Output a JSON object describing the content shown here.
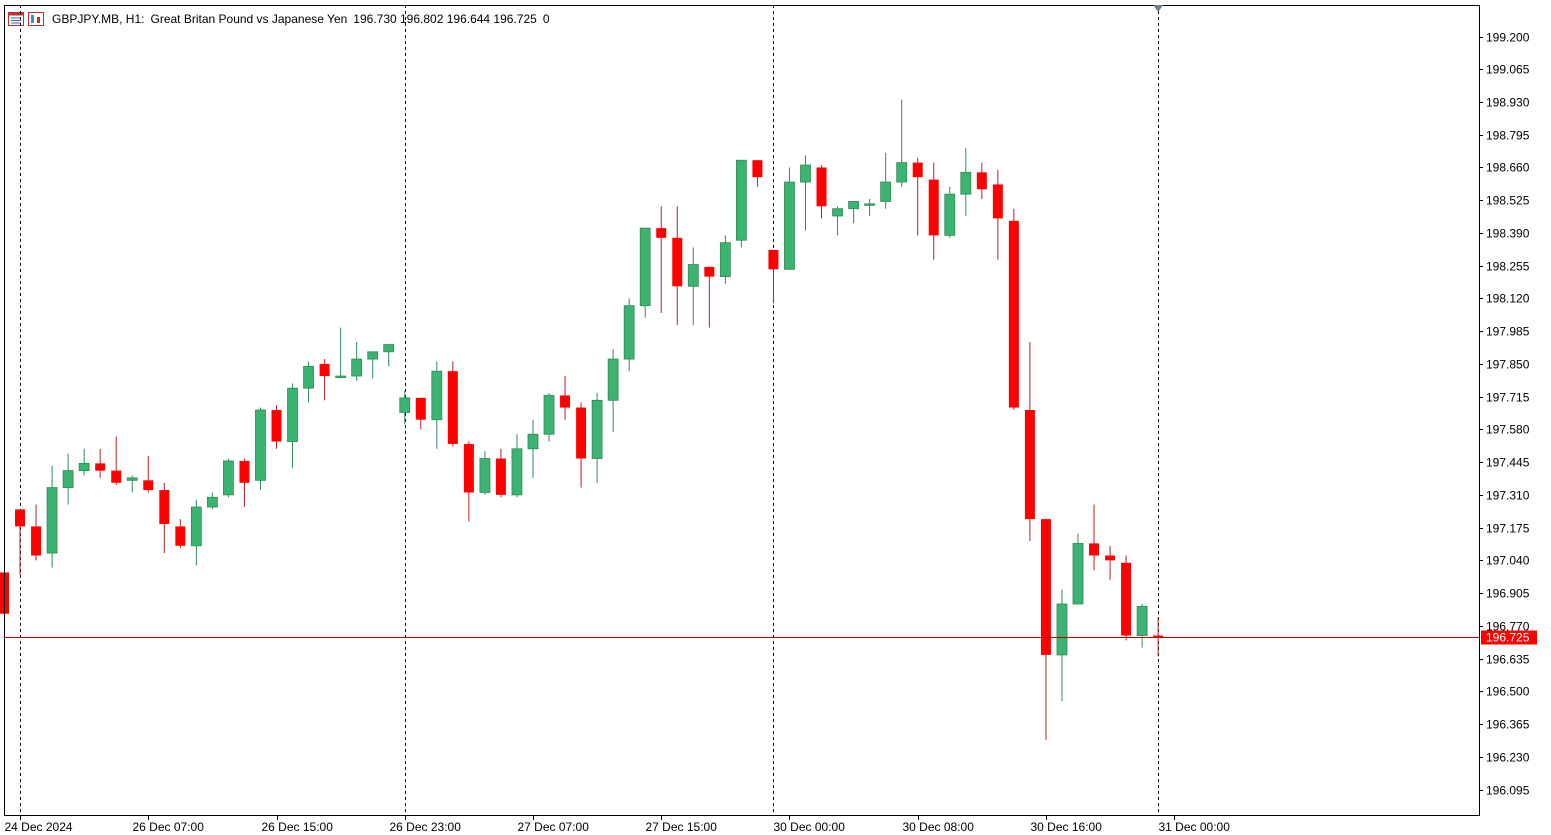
{
  "header": {
    "symbol": "GBPJPY.MB, H1:",
    "description": "Great Britan Pound vs Japanese Yen",
    "ohlc": "196.730 196.802 196.644 196.725",
    "extra": "0",
    "icons": [
      "chart-window-icon",
      "symbol-window-icon"
    ]
  },
  "colors": {
    "bull": "#3cb371",
    "bear": "#ff0000",
    "wick_bull": "#2e8b57",
    "wick_bear": "#b22222",
    "price_line": "#c00000",
    "price_label_bg": "#ff0000",
    "grid_vertical": "#000000",
    "axis": "#000000"
  },
  "chart_data": {
    "type": "candlestick",
    "timeframe": "H1",
    "ylim": [
      195.99,
      199.33
    ],
    "y_ticks": [
      "199.200",
      "199.065",
      "198.930",
      "198.795",
      "198.660",
      "198.525",
      "198.390",
      "198.255",
      "198.120",
      "197.985",
      "197.850",
      "197.715",
      "197.580",
      "197.445",
      "197.310",
      "197.175",
      "197.040",
      "196.905",
      "196.770",
      "196.635",
      "196.500",
      "196.365",
      "196.230",
      "196.095"
    ],
    "x_labels": [
      "24 Dec 2024",
      "26 Dec 07:00",
      "26 Dec 15:00",
      "26 Dec 23:00",
      "27 Dec 07:00",
      "27 Dec 15:00",
      "30 Dec 00:00",
      "30 Dec 08:00",
      "30 Dec 16:00",
      "31 Dec 00:00"
    ],
    "day_separators_at_bar": [
      1,
      25,
      48,
      72
    ],
    "current_price": "196.725",
    "candles": [
      {
        "o": 196.99,
        "h": 196.99,
        "l": 196.82,
        "c": 196.82
      },
      {
        "o": 197.25,
        "h": 197.25,
        "l": 196.98,
        "c": 197.18
      },
      {
        "o": 197.18,
        "h": 197.27,
        "l": 197.04,
        "c": 197.06
      },
      {
        "o": 197.07,
        "h": 197.43,
        "l": 197.01,
        "c": 197.34
      },
      {
        "o": 197.34,
        "h": 197.48,
        "l": 197.27,
        "c": 197.41
      },
      {
        "o": 197.41,
        "h": 197.5,
        "l": 197.39,
        "c": 197.44
      },
      {
        "o": 197.44,
        "h": 197.5,
        "l": 197.38,
        "c": 197.41
      },
      {
        "o": 197.41,
        "h": 197.55,
        "l": 197.35,
        "c": 197.36
      },
      {
        "o": 197.37,
        "h": 197.39,
        "l": 197.32,
        "c": 197.38
      },
      {
        "o": 197.37,
        "h": 197.47,
        "l": 197.32,
        "c": 197.33
      },
      {
        "o": 197.33,
        "h": 197.36,
        "l": 197.07,
        "c": 197.19
      },
      {
        "o": 197.18,
        "h": 197.21,
        "l": 197.09,
        "c": 197.1
      },
      {
        "o": 197.1,
        "h": 197.29,
        "l": 197.02,
        "c": 197.26
      },
      {
        "o": 197.26,
        "h": 197.32,
        "l": 197.25,
        "c": 197.3
      },
      {
        "o": 197.31,
        "h": 197.46,
        "l": 197.3,
        "c": 197.45
      },
      {
        "o": 197.45,
        "h": 197.46,
        "l": 197.26,
        "c": 197.36
      },
      {
        "o": 197.37,
        "h": 197.67,
        "l": 197.33,
        "c": 197.66
      },
      {
        "o": 197.66,
        "h": 197.68,
        "l": 197.5,
        "c": 197.53
      },
      {
        "o": 197.53,
        "h": 197.77,
        "l": 197.42,
        "c": 197.75
      },
      {
        "o": 197.75,
        "h": 197.86,
        "l": 197.69,
        "c": 197.84
      },
      {
        "o": 197.85,
        "h": 197.87,
        "l": 197.7,
        "c": 197.8
      },
      {
        "o": 197.8,
        "h": 198.0,
        "l": 197.79,
        "c": 197.8
      },
      {
        "o": 197.8,
        "h": 197.94,
        "l": 197.78,
        "c": 197.87
      },
      {
        "o": 197.87,
        "h": 197.89,
        "l": 197.79,
        "c": 197.9
      },
      {
        "o": 197.9,
        "h": 197.93,
        "l": 197.84,
        "c": 197.93
      },
      {
        "o": 197.65,
        "h": 197.74,
        "l": 197.6,
        "c": 197.71
      },
      {
        "o": 197.71,
        "h": 197.71,
        "l": 197.58,
        "c": 197.62
      },
      {
        "o": 197.62,
        "h": 197.86,
        "l": 197.5,
        "c": 197.82
      },
      {
        "o": 197.82,
        "h": 197.86,
        "l": 197.51,
        "c": 197.52
      },
      {
        "o": 197.52,
        "h": 197.53,
        "l": 197.2,
        "c": 197.32
      },
      {
        "o": 197.32,
        "h": 197.49,
        "l": 197.31,
        "c": 197.46
      },
      {
        "o": 197.46,
        "h": 197.5,
        "l": 197.3,
        "c": 197.31
      },
      {
        "o": 197.31,
        "h": 197.56,
        "l": 197.3,
        "c": 197.5
      },
      {
        "o": 197.5,
        "h": 197.62,
        "l": 197.38,
        "c": 197.56
      },
      {
        "o": 197.56,
        "h": 197.73,
        "l": 197.53,
        "c": 197.72
      },
      {
        "o": 197.72,
        "h": 197.8,
        "l": 197.62,
        "c": 197.67
      },
      {
        "o": 197.67,
        "h": 197.69,
        "l": 197.34,
        "c": 197.46
      },
      {
        "o": 197.46,
        "h": 197.73,
        "l": 197.36,
        "c": 197.7
      },
      {
        "o": 197.7,
        "h": 197.91,
        "l": 197.57,
        "c": 197.87
      },
      {
        "o": 197.87,
        "h": 198.12,
        "l": 197.82,
        "c": 198.09
      },
      {
        "o": 198.09,
        "h": 198.41,
        "l": 198.04,
        "c": 198.41
      },
      {
        "o": 198.41,
        "h": 198.5,
        "l": 198.06,
        "c": 198.37
      },
      {
        "o": 198.37,
        "h": 198.5,
        "l": 198.01,
        "c": 198.17
      },
      {
        "o": 198.17,
        "h": 198.33,
        "l": 198.01,
        "c": 198.26
      },
      {
        "o": 198.25,
        "h": 198.25,
        "l": 198.0,
        "c": 198.21
      },
      {
        "o": 198.21,
        "h": 198.38,
        "l": 198.18,
        "c": 198.35
      },
      {
        "o": 198.36,
        "h": 198.69,
        "l": 198.33,
        "c": 198.69
      },
      {
        "o": 198.69,
        "h": 198.69,
        "l": 198.58,
        "c": 198.62
      },
      {
        "o": 198.32,
        "h": 198.32,
        "l": 198.1,
        "c": 198.24
      },
      {
        "o": 198.24,
        "h": 198.66,
        "l": 198.24,
        "c": 198.6
      },
      {
        "o": 198.6,
        "h": 198.71,
        "l": 198.4,
        "c": 198.67
      },
      {
        "o": 198.66,
        "h": 198.67,
        "l": 198.45,
        "c": 198.5
      },
      {
        "o": 198.46,
        "h": 198.5,
        "l": 198.38,
        "c": 198.49
      },
      {
        "o": 198.49,
        "h": 198.51,
        "l": 198.43,
        "c": 198.52
      },
      {
        "o": 198.51,
        "h": 198.53,
        "l": 198.46,
        "c": 198.51
      },
      {
        "o": 198.52,
        "h": 198.72,
        "l": 198.49,
        "c": 198.6
      },
      {
        "o": 198.6,
        "h": 198.94,
        "l": 198.58,
        "c": 198.68
      },
      {
        "o": 198.68,
        "h": 198.7,
        "l": 198.38,
        "c": 198.62
      },
      {
        "o": 198.61,
        "h": 198.68,
        "l": 198.28,
        "c": 198.38
      },
      {
        "o": 198.38,
        "h": 198.58,
        "l": 198.37,
        "c": 198.55
      },
      {
        "o": 198.55,
        "h": 198.74,
        "l": 198.46,
        "c": 198.64
      },
      {
        "o": 198.64,
        "h": 198.68,
        "l": 198.53,
        "c": 198.57
      },
      {
        "o": 198.59,
        "h": 198.65,
        "l": 198.28,
        "c": 198.45
      },
      {
        "o": 198.44,
        "h": 198.49,
        "l": 197.66,
        "c": 197.67
      },
      {
        "o": 197.66,
        "h": 197.94,
        "l": 197.12,
        "c": 197.21
      },
      {
        "o": 197.21,
        "h": 197.21,
        "l": 196.3,
        "c": 196.65
      },
      {
        "o": 196.65,
        "h": 196.92,
        "l": 196.46,
        "c": 196.86
      },
      {
        "o": 196.86,
        "h": 197.15,
        "l": 196.86,
        "c": 197.11
      },
      {
        "o": 197.11,
        "h": 197.27,
        "l": 197.0,
        "c": 197.06
      },
      {
        "o": 197.06,
        "h": 197.1,
        "l": 196.96,
        "c": 197.04
      },
      {
        "o": 197.03,
        "h": 197.06,
        "l": 196.71,
        "c": 196.73
      },
      {
        "o": 196.73,
        "h": 196.86,
        "l": 196.68,
        "c": 196.85
      },
      {
        "o": 196.73,
        "h": 196.802,
        "l": 196.644,
        "c": 196.725
      }
    ]
  }
}
